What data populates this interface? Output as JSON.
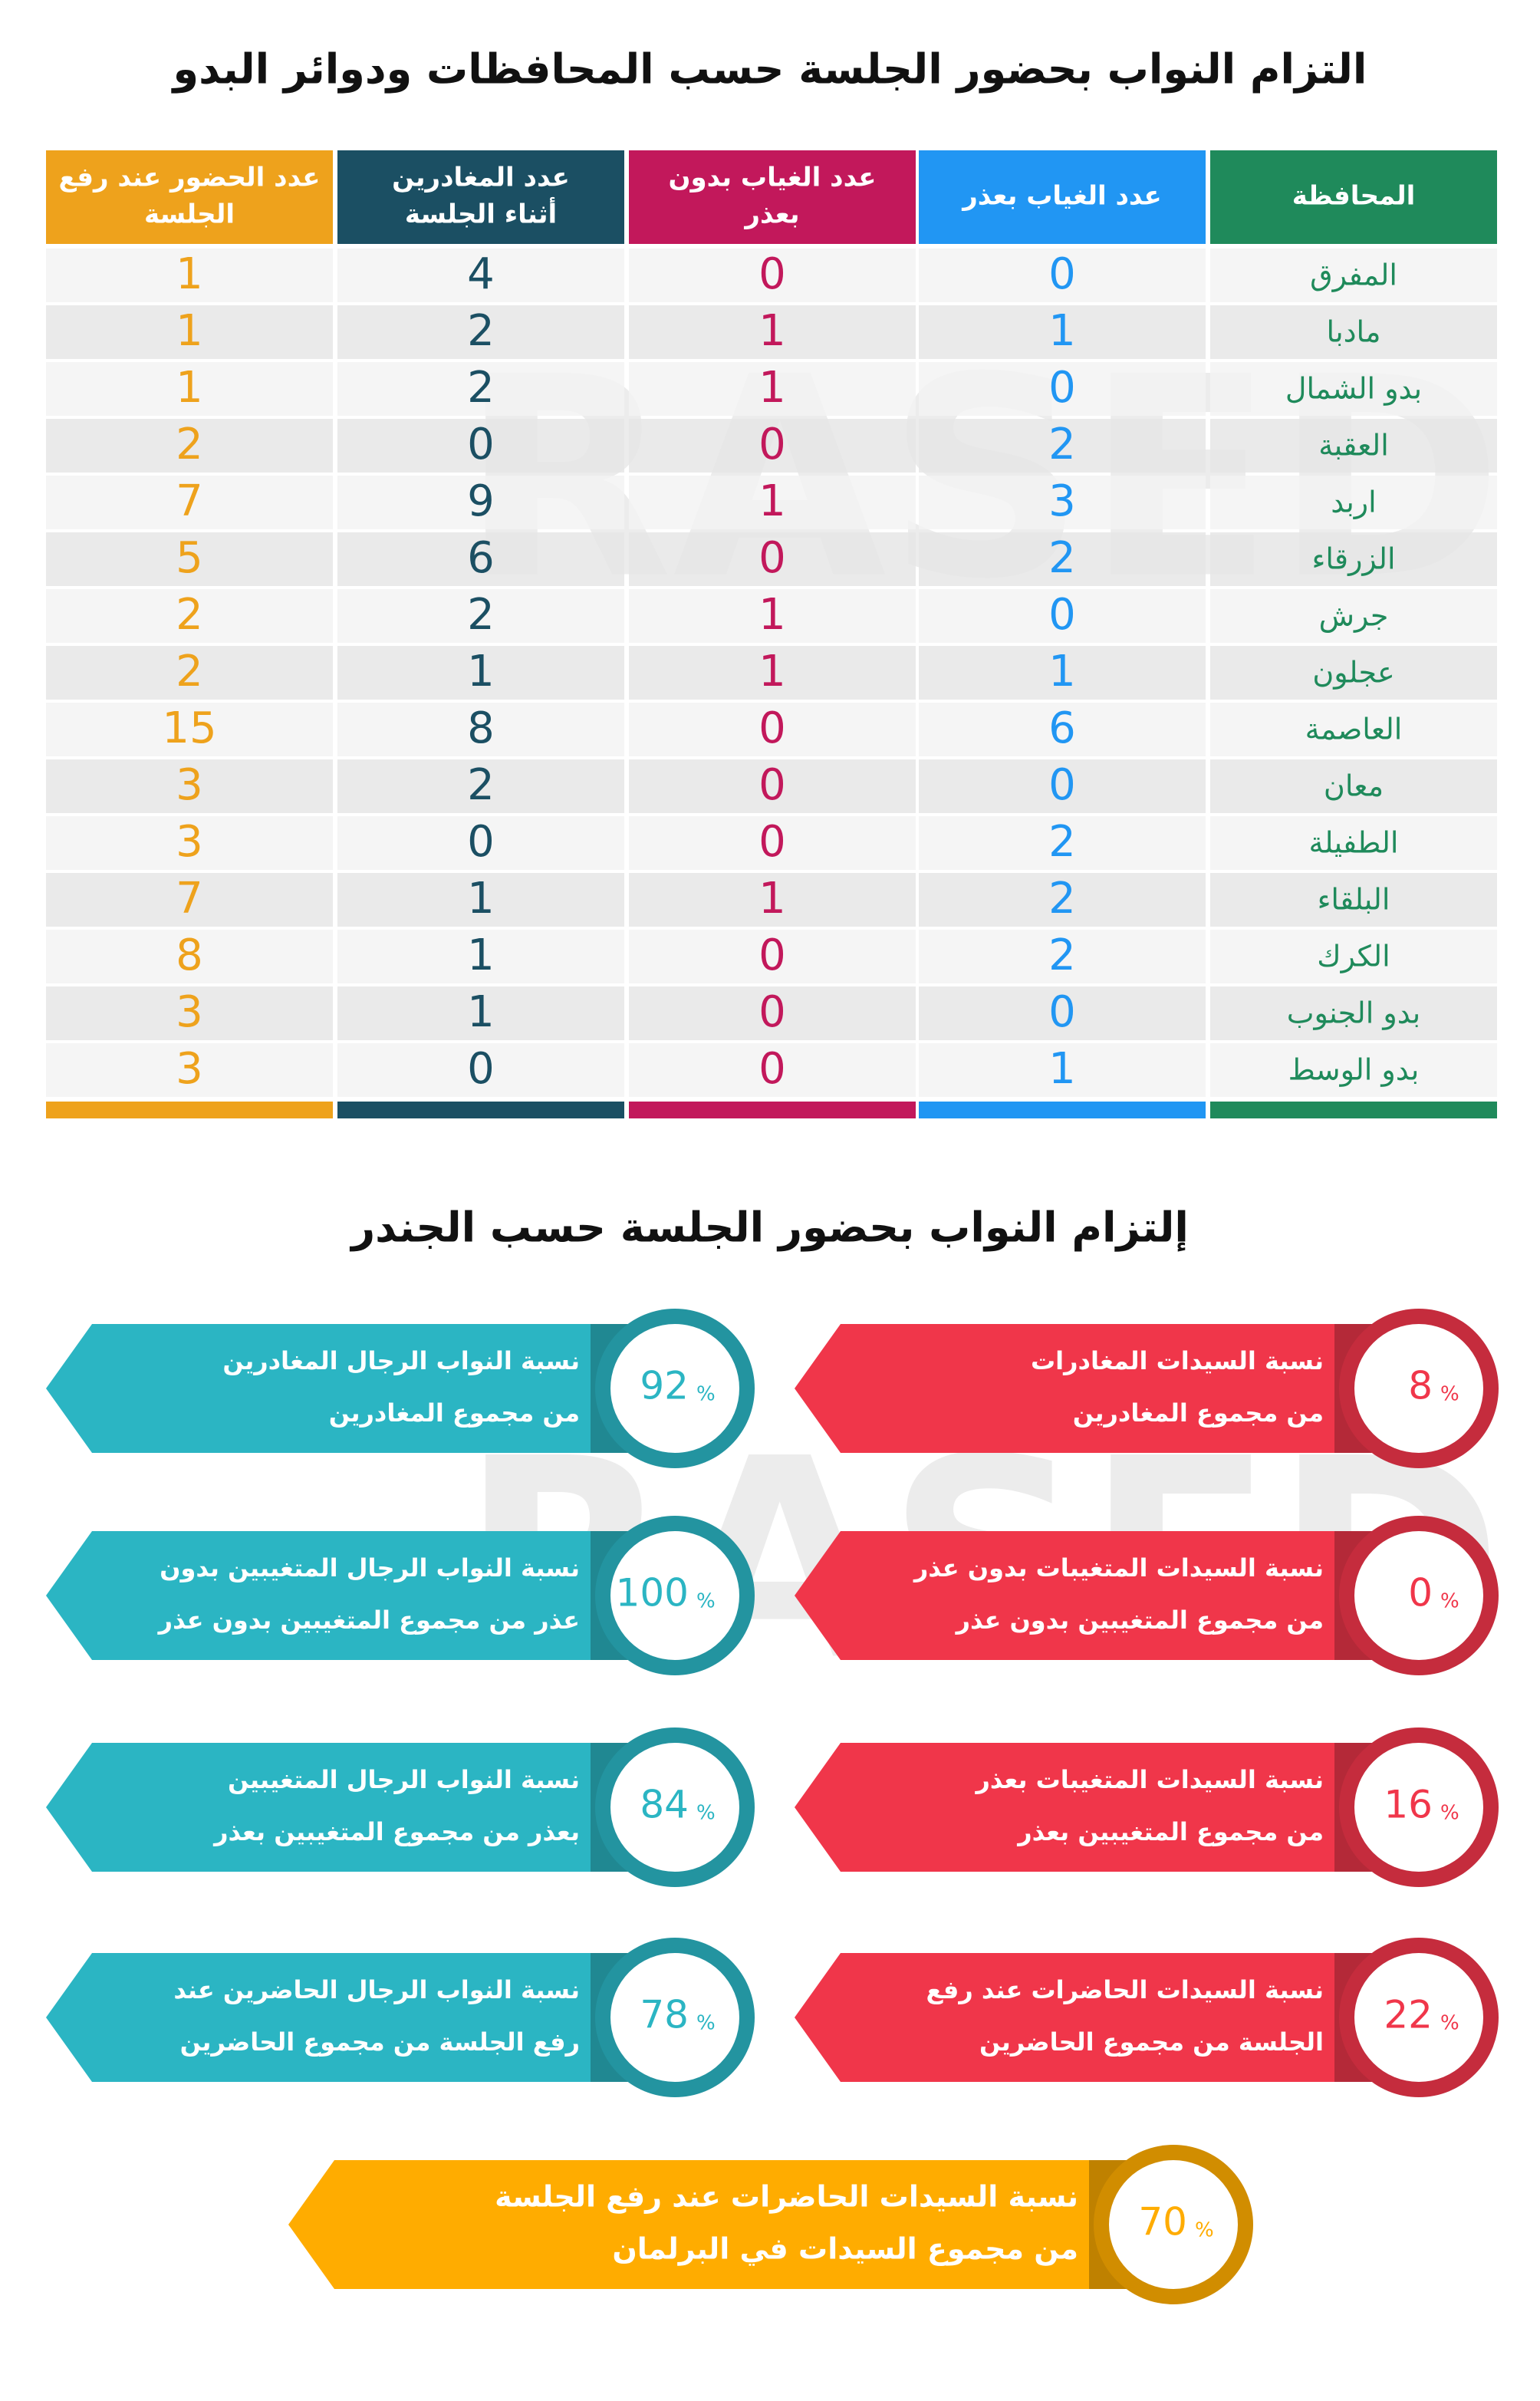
{
  "watermark": "RASED",
  "table": {
    "title": "التزام النواب بحضور الجلسة حسب المحافظات ودوائر البدو",
    "headers": [
      [
        "المحافظة"
      ],
      [
        "عدد الغياب بعذر"
      ],
      [
        "عدد الغياب بدون",
        "بعذر"
      ],
      [
        "عدد المغادرين",
        "أثناء الجلسة"
      ],
      [
        "عدد الحضور عند رفع",
        "الجلسة"
      ]
    ],
    "colors": [
      "#1f8a5b",
      "#2196f3",
      "#c2185b",
      "#1b4f63",
      "#eea21c"
    ],
    "rows": [
      [
        "المفرق",
        0,
        0,
        4,
        1
      ],
      [
        "مادبا",
        1,
        1,
        2,
        1
      ],
      [
        "بدو الشمال",
        0,
        1,
        2,
        1
      ],
      [
        "العقبة",
        2,
        0,
        0,
        2
      ],
      [
        "اربد",
        3,
        1,
        9,
        7
      ],
      [
        "الزرقاء",
        2,
        0,
        6,
        5
      ],
      [
        "جرش",
        0,
        1,
        2,
        2
      ],
      [
        "عجلون",
        1,
        1,
        1,
        2
      ],
      [
        "العاصمة",
        6,
        0,
        8,
        15
      ],
      [
        "معان",
        0,
        0,
        2,
        3
      ],
      [
        "الطفيلة",
        2,
        0,
        0,
        3
      ],
      [
        "البلقاء",
        2,
        1,
        1,
        7
      ],
      [
        "الكرك",
        2,
        0,
        1,
        8
      ],
      [
        "بدو الجنوب",
        0,
        0,
        1,
        3
      ],
      [
        "بدو الوسط",
        1,
        0,
        0,
        3
      ]
    ]
  },
  "gender": {
    "title": "إلتزام النواب بحضور الجلسة حسب الجندر",
    "women_color": "#f0364a",
    "men_color": "#2bb5c3",
    "summary_color": "#ffac00",
    "women": [
      {
        "lines": [
          "نسبة السيدات المغادرات",
          "من مجموع المغادرين"
        ],
        "value": 8,
        "unit": "%"
      },
      {
        "lines": [
          "نسبة السيدات المتغيبات بدون عذر",
          "من مجموع المتغيبين بدون عذر"
        ],
        "value": 0,
        "unit": "%"
      },
      {
        "lines": [
          "نسبة السيدات المتغيبات بعذر",
          "من مجموع المتغيبين بعذر"
        ],
        "value": 16,
        "unit": "%"
      },
      {
        "lines": [
          "نسبة السيدات الحاضرات عند رفع",
          "الجلسة من مجموع الحاضرين"
        ],
        "value": 22,
        "unit": "%"
      }
    ],
    "men": [
      {
        "lines": [
          "نسبة النواب الرجال المغادرين",
          "من مجموع المغادرين"
        ],
        "value": 92,
        "unit": "%"
      },
      {
        "lines": [
          "نسبة النواب الرجال المتغيبين بدون",
          "عذر من مجموع المتغيبين بدون عذر"
        ],
        "value": 100,
        "unit": "%"
      },
      {
        "lines": [
          "نسبة النواب الرجال المتغيبين",
          "بعذر من مجموع المتغيبين بعذر"
        ],
        "value": 84,
        "unit": "%"
      },
      {
        "lines": [
          "نسبة النواب الرجال الحاضرين عند",
          "رفع الجلسة من مجموع الحاضرين"
        ],
        "value": 78,
        "unit": "%"
      }
    ],
    "summary": {
      "lines": [
        "نسبة السيدات الحاضرات عند رفع الجلسة",
        "من مجموع السيدات في البرلمان"
      ],
      "value": 70,
      "unit": "%"
    }
  }
}
